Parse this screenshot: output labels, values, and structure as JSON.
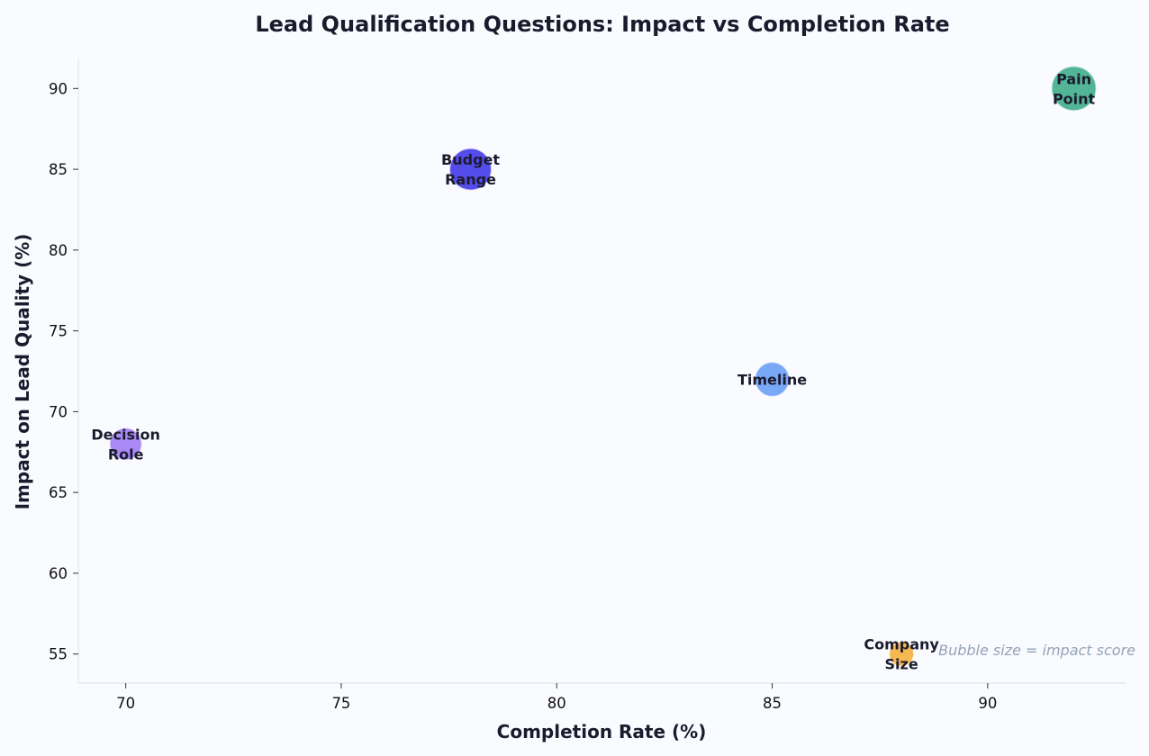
{
  "chart_data": {
    "type": "scatter",
    "title": "Lead Qualification Questions: Impact vs Completion Rate",
    "xlabel": "Completion Rate (%)",
    "ylabel": "Impact on Lead Quality (%)",
    "xlim": [
      68.9,
      93.2
    ],
    "ylim": [
      53.2,
      91.8
    ],
    "xticks": [
      70,
      75,
      80,
      85,
      90
    ],
    "yticks": [
      55,
      60,
      65,
      70,
      75,
      80,
      85,
      90
    ],
    "grid": false,
    "annotation": "Bubble size = impact score",
    "points": [
      {
        "label": [
          "Pain",
          "Point"
        ],
        "x": 92,
        "y": 90,
        "color": "#3fae8b"
      },
      {
        "label": [
          "Budget",
          "Range"
        ],
        "x": 78,
        "y": 85,
        "color": "#4338ea"
      },
      {
        "label": [
          "Timeline"
        ],
        "x": 85,
        "y": 72,
        "color": "#6a9ef6"
      },
      {
        "label": [
          "Decision",
          "Role"
        ],
        "x": 70,
        "y": 68,
        "color": "#a07cf5"
      },
      {
        "label": [
          "Company",
          "Size"
        ],
        "x": 88,
        "y": 55,
        "color": "#f5b13f"
      }
    ]
  }
}
